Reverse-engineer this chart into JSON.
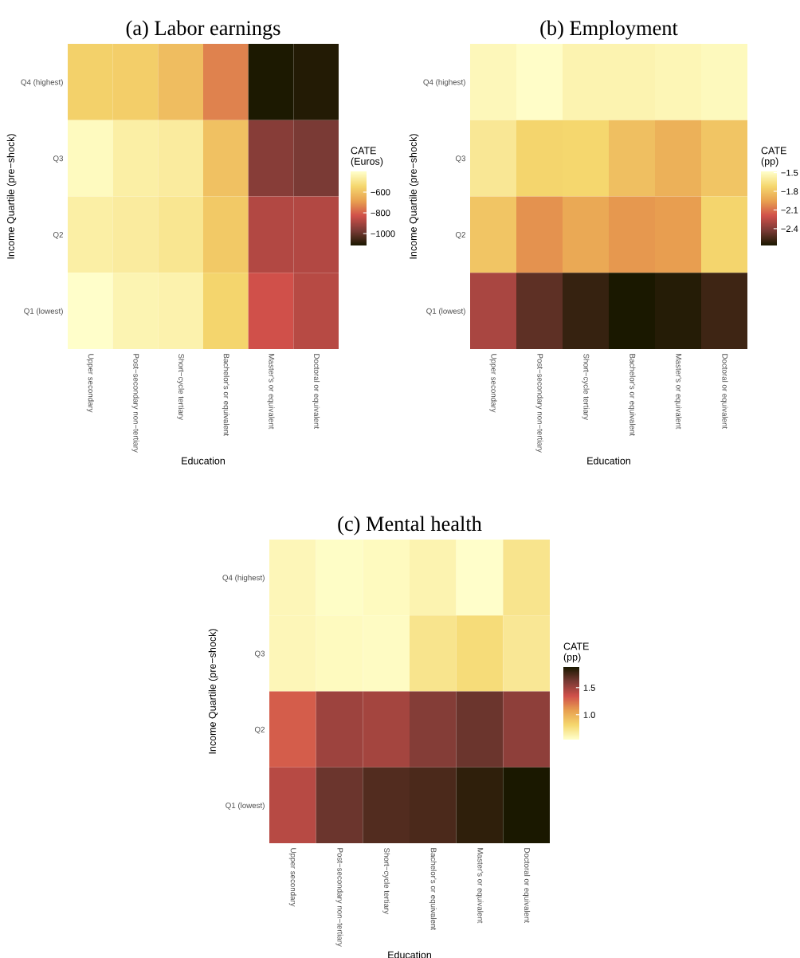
{
  "chart_data": [
    {
      "type": "heatmap",
      "title": "(a) Labor earnings",
      "xlabel": "Education",
      "ylabel": "Income Quartile (pre−shock)",
      "clabel": "CATE\n(Euros)",
      "categories": [
        "Upper secondary",
        "Post−secondary non−tertiary",
        "Short−cycle tertiary",
        "Bachelor's or equivalent",
        "Master's or equivalent",
        "Doctoral or equivalent"
      ],
      "y_categories": [
        "Q4 (highest)",
        "Q3",
        "Q2",
        "Q1 (lowest)"
      ],
      "cells": [
        [
          -560,
          -565,
          -610,
          -740,
          -1110,
          -1100
        ],
        [
          -420,
          -460,
          -470,
          -600,
          -950,
          -970
        ],
        [
          -460,
          -470,
          -490,
          -580,
          -880,
          -880
        ],
        [
          -405,
          -440,
          -450,
          -550,
          -830,
          -870
        ]
      ],
      "clim": [
        -1115,
        -400
      ],
      "cticks": [
        {
          "value": -1000,
          "label": "−1000"
        },
        {
          "value": -800,
          "label": "−800"
        },
        {
          "value": -600,
          "label": "−600"
        }
      ],
      "colors": [
        "#1a1800",
        "#7a3a35",
        "#d0504a",
        "#e8a050",
        "#f5d76e",
        "#ffffcc"
      ]
    },
    {
      "type": "heatmap",
      "title": "(b) Employment",
      "xlabel": "Education",
      "ylabel": "Income Quartile (pre−shock)",
      "clabel": "CATE\n(pp)",
      "categories": [
        "Upper secondary",
        "Post−secondary non−tertiary",
        "Short−cycle tertiary",
        "Bachelor's or equivalent",
        "Master's or equivalent",
        "Doctoral or equivalent"
      ],
      "y_categories": [
        "Q4 (highest)",
        "Q3",
        "Q2",
        "Q1 (lowest)"
      ],
      "cells": [
        [
          -1.53,
          -1.49,
          -1.55,
          -1.55,
          -1.54,
          -1.52
        ],
        [
          -1.62,
          -1.73,
          -1.72,
          -1.82,
          -1.88,
          -1.8
        ],
        [
          -1.8,
          -2.0,
          -1.92,
          -1.98,
          -1.96,
          -1.73
        ],
        [
          -2.3,
          -2.5,
          -2.6,
          -2.67,
          -2.64,
          -2.58
        ]
      ],
      "clim": [
        -2.67,
        -1.48
      ],
      "cticks": [
        {
          "value": -2.4,
          "label": "−2.4"
        },
        {
          "value": -2.1,
          "label": "−2.1"
        },
        {
          "value": -1.8,
          "label": "−1.8"
        },
        {
          "value": -1.5,
          "label": "−1.5"
        }
      ],
      "colors": [
        "#1a1800",
        "#7a3a35",
        "#d0504a",
        "#e8a050",
        "#f5d76e",
        "#ffffcc"
      ]
    },
    {
      "type": "heatmap",
      "title": "(c) Mental health",
      "xlabel": "Education",
      "ylabel": "Income Quartile (pre−shock)",
      "clabel": "CATE\n(pp)",
      "categories": [
        "Upper secondary",
        "Post−secondary non−tertiary",
        "Short−cycle tertiary",
        "Bachelor's or equivalent",
        "Master's or equivalent",
        "Doctoral or equivalent"
      ],
      "y_categories": [
        "Q4 (highest)",
        "Q3",
        "Q2",
        "Q1 (lowest)"
      ],
      "cells": [
        [
          0.6,
          0.56,
          0.58,
          0.62,
          0.55,
          0.72
        ],
        [
          0.6,
          0.58,
          0.57,
          0.72,
          0.78,
          0.7
        ],
        [
          1.3,
          1.5,
          1.48,
          1.58,
          1.65,
          1.55
        ],
        [
          1.42,
          1.65,
          1.72,
          1.74,
          1.82,
          1.88
        ]
      ],
      "clim": [
        0.54,
        1.88
      ],
      "cticks": [
        {
          "value": 1,
          "label": "1.0"
        },
        {
          "value": 1.5,
          "label": "1.5"
        }
      ],
      "colors": [
        "#ffffcc",
        "#f5d76e",
        "#e8a050",
        "#d0504a",
        "#7a3a35",
        "#1a1800"
      ]
    }
  ]
}
